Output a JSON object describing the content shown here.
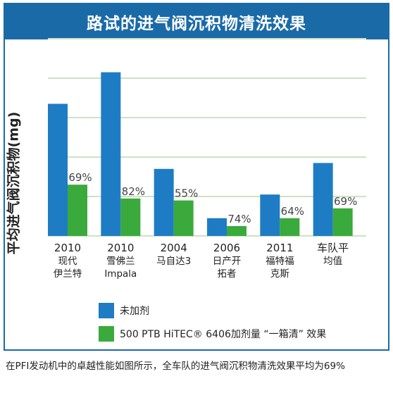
{
  "title": "路试的进气阀沉积物清洗效果",
  "caption": "在PFI发动机中的卓越性能如图所示，全车队的进气阀沉积物清洗效果平均为69%",
  "colors": {
    "frame": "#1a6aa8",
    "blue": "#1e7cc4",
    "green": "#3aaa3c",
    "grid": "#cde3c0"
  },
  "chart_data": {
    "type": "bar",
    "title": "路试的进气阀沉积物清洗效果",
    "ylabel": "平均进气阀沉积物(mg)",
    "xlabel": "",
    "ylim": [
      0,
      100
    ],
    "grid": true,
    "legend_position": "bottom",
    "categories": [
      {
        "line1": "2010",
        "line2": "现代",
        "line3": "伊兰特"
      },
      {
        "line1": "2010",
        "line2": "雪佛兰",
        "line3": "Impala"
      },
      {
        "line1": "2004",
        "line2": "马自达3",
        "line3": ""
      },
      {
        "line1": "2006",
        "line2": "日产开",
        "line3": "拓者"
      },
      {
        "line1": "2011",
        "line2": "福特福",
        "line3": "克斯"
      },
      {
        "line1": "车队平",
        "line2": "均值",
        "line3": ""
      }
    ],
    "series": [
      {
        "name": "未加剂",
        "color": "#1e7cc4",
        "values": [
          67,
          83,
          34,
          9,
          21,
          37
        ]
      },
      {
        "name": "500 PTB HiTEC® 6406加剂量 “一箱清” 效果",
        "color": "#3aaa3c",
        "values": [
          26,
          19,
          18,
          5,
          9,
          14
        ]
      }
    ],
    "bar_labels": [
      "69%",
      "82%",
      "55%",
      "74%",
      "64%",
      "69%"
    ]
  }
}
